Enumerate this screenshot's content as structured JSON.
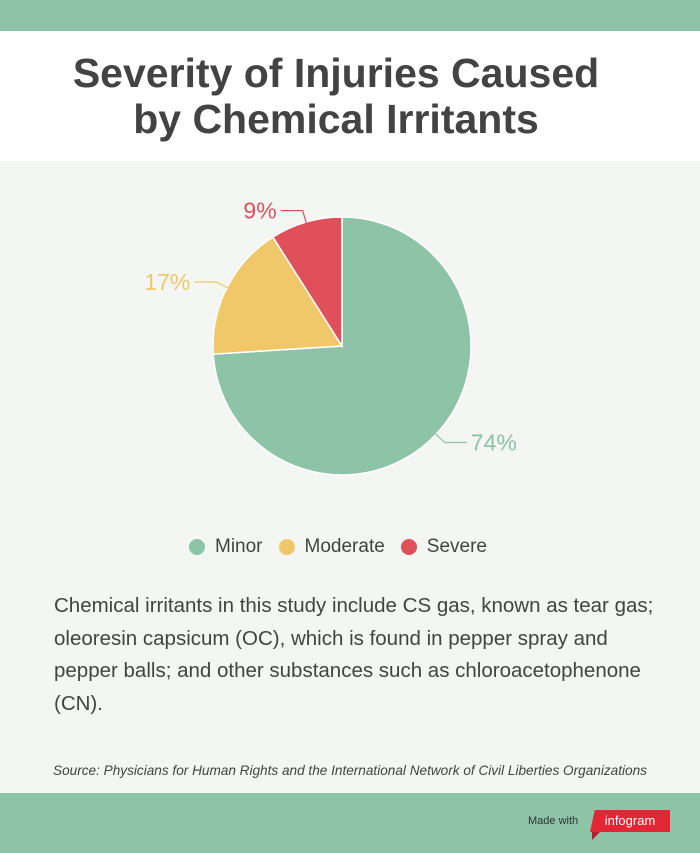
{
  "title_line1": "Severity of Injuries Caused",
  "title_line2": "by Chemical Irritants",
  "chart_data": {
    "type": "pie",
    "categories": [
      "Minor",
      "Moderate",
      "Severe"
    ],
    "values": [
      74,
      17,
      9
    ],
    "labels": [
      "74%",
      "17%",
      "9%"
    ],
    "colors": [
      "#8dc3a7",
      "#f0c86a",
      "#e0505a"
    ],
    "legend_position": "bottom"
  },
  "description": "Chemical irritants in this study include CS gas, known as tear gas; oleoresin capsicum (OC), which is found in pepper spray and pepper balls; and other substances such as chloroacetophenone (CN).",
  "source": "Source: Physicians for Human Rights and the International Network of Civil Liberties Organizations",
  "footer": {
    "made_with": "Made with",
    "brand": "infogram"
  }
}
